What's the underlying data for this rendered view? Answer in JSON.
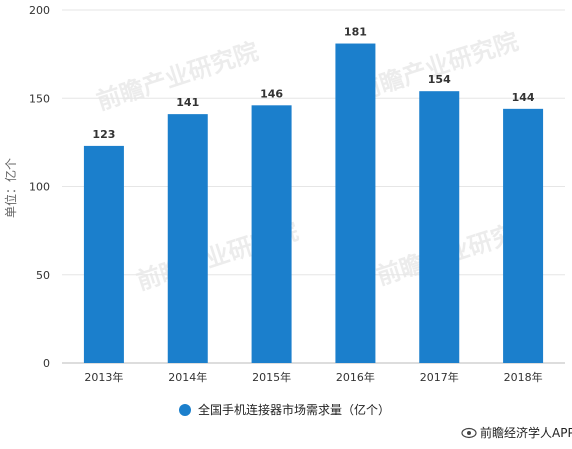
{
  "chart_data": {
    "type": "bar",
    "categories": [
      "2013年",
      "2014年",
      "2015年",
      "2016年",
      "2017年",
      "2018年"
    ],
    "series": [
      {
        "name": "全国手机连接器市场需求量（亿个）",
        "values": [
          123,
          141,
          146,
          181,
          154,
          144
        ]
      }
    ],
    "ylabel": "单位：亿个",
    "ylim": [
      0,
      200
    ],
    "yticks": [
      0,
      50,
      100,
      150,
      200
    ],
    "grid": true,
    "legend": "bottom-center",
    "bar_color": "#1b7fcc"
  },
  "watermark": "前瞻产业研究院",
  "credit": {
    "icon": "eye-icon",
    "text": "前瞻经济学人APP"
  }
}
